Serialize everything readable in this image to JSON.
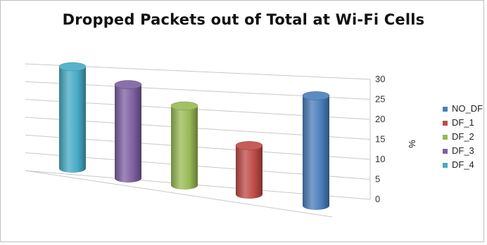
{
  "chart_data": {
    "type": "bar",
    "style": "3d-cylinder",
    "title": "Dropped Packets out of Total at Wi-Fi Cells",
    "xlabel": "",
    "ylabel": "%",
    "ylim": [
      0,
      30
    ],
    "yticks": [
      "0",
      "5",
      "10",
      "15",
      "20",
      "25",
      "30"
    ],
    "grid": true,
    "legend_position": "right",
    "series": [
      {
        "name": "NO_DF",
        "value": 27,
        "color": "#4a7ebb"
      },
      {
        "name": "DF_1",
        "value": 12,
        "color": "#be4b48"
      },
      {
        "name": "DF_2",
        "value": 19.5,
        "color": "#98b954"
      },
      {
        "name": "DF_3",
        "value": 23,
        "color": "#7d60a0"
      },
      {
        "name": "DF_4",
        "value": 25,
        "color": "#46aac5"
      }
    ]
  }
}
